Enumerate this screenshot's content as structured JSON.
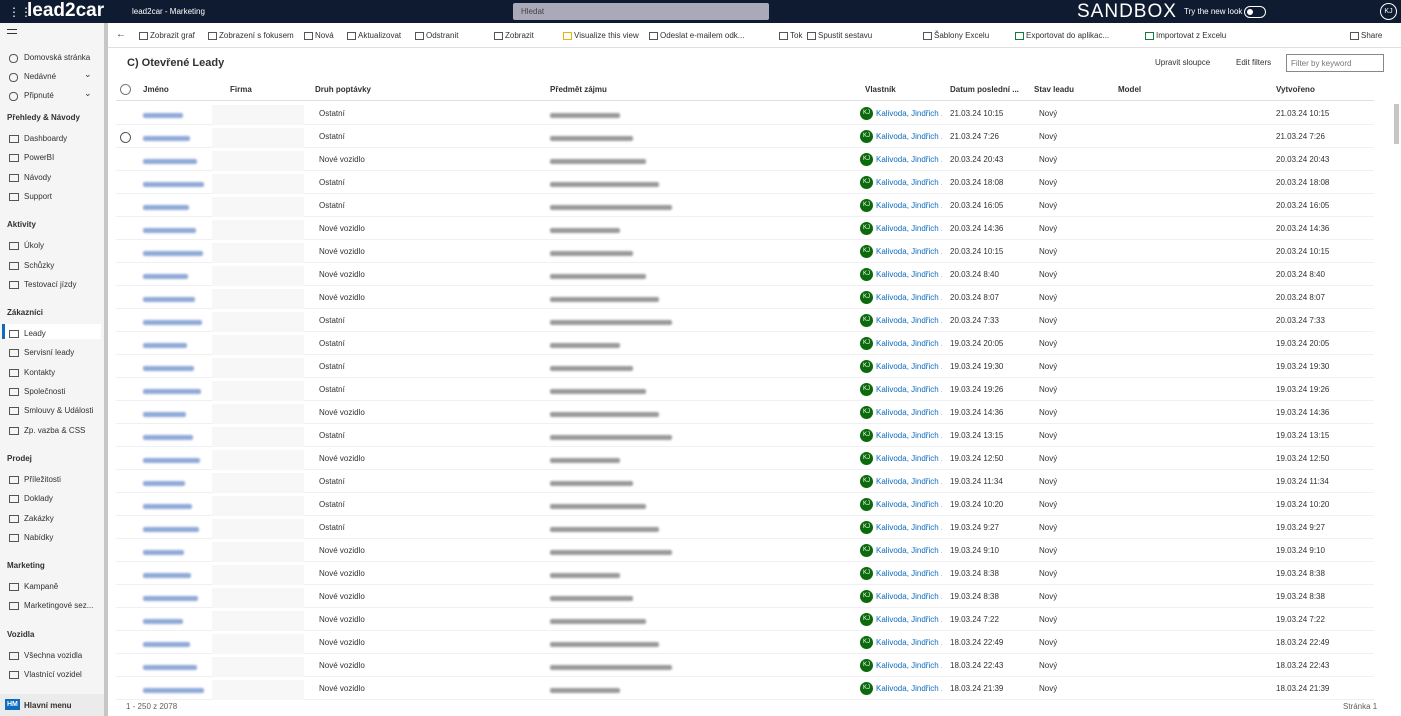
{
  "header": {
    "app_name": "lead2car",
    "area": "lead2car - Marketing",
    "search": "Hledat",
    "environment": "SANDBOX",
    "try_new_look": "Try the new look",
    "avatar": "KJ"
  },
  "sidebar": {
    "top": [
      "Domovská stránka",
      "Nedávné",
      "Připnuté"
    ],
    "sections": [
      {
        "title": "Přehledy & Návody",
        "items": [
          "Dashboardy",
          "PowerBI",
          "Návody",
          "Support"
        ]
      },
      {
        "title": "Aktivity",
        "items": [
          "Úkoly",
          "Schůzky",
          "Testovací jízdy"
        ]
      },
      {
        "title": "Zákazníci",
        "items": [
          "Leady",
          "Servisní leady",
          "Kontakty",
          "Společnosti",
          "Smlouvy & Události",
          "Zp. vazba & CSS"
        ]
      },
      {
        "title": "Prodej",
        "items": [
          "Příležitosti",
          "Doklady",
          "Zakázky",
          "Nabídky"
        ]
      },
      {
        "title": "Marketing",
        "items": [
          "Kampaně",
          "Marketingové sez..."
        ]
      },
      {
        "title": "Vozidla",
        "items": [
          "Všechna vozidla",
          "Vlastnící vozidel"
        ]
      }
    ],
    "bottom_badge": "HM",
    "bottom_label": "Hlavní menu"
  },
  "toolbar": [
    "Zobrazit graf",
    "Zobrazení s fokusem",
    "Nová",
    "Aktualizovat",
    "Odstranit",
    "Zobrazit",
    "Visualize this view",
    "Odeslat e-mailem odk...",
    "Tok",
    "Spustit sestavu",
    "Šablony Excelu",
    "Exportovat do aplikac...",
    "Importovat z Excelu",
    "Share"
  ],
  "view": {
    "title": "C) Otevřené Leady",
    "edit_columns": "Upravit sloupce",
    "edit_filters": "Edit filters",
    "filter_placeholder": "Filter by keyword"
  },
  "table": {
    "columns": [
      "Jméno",
      "Firma",
      "Druh poptávky",
      "Předmět zájmu",
      "Vlastník",
      "Datum poslední ...",
      "Stav leadu",
      "Model",
      "Vytvořeno"
    ],
    "rows": [
      [
        "Ostatní",
        "KJ",
        "Kalivoda, Jindřich ...",
        "21.03.24 10:15",
        "Nový",
        "21.03.24 10:15"
      ],
      [
        "Ostatní",
        "KJ",
        "Kalivoda, Jindřich ...",
        "21.03.24 7:26",
        "Nový",
        "21.03.24 7:26"
      ],
      [
        "Nové vozidlo",
        "KJ",
        "Kalivoda, Jindřich ...",
        "20.03.24 20:43",
        "Nový",
        "20.03.24 20:43"
      ],
      [
        "Ostatní",
        "KJ",
        "Kalivoda, Jindřich ...",
        "20.03.24 18:08",
        "Nový",
        "20.03.24 18:08"
      ],
      [
        "Ostatní",
        "KJ",
        "Kalivoda, Jindřich ...",
        "20.03.24 16:05",
        "Nový",
        "20.03.24 16:05"
      ],
      [
        "Nové vozidlo",
        "KJ",
        "Kalivoda, Jindřich ...",
        "20.03.24 14:36",
        "Nový",
        "20.03.24 14:36"
      ],
      [
        "Nové vozidlo",
        "KJ",
        "Kalivoda, Jindřich ...",
        "20.03.24 10:15",
        "Nový",
        "20.03.24 10:15"
      ],
      [
        "Nové vozidlo",
        "KJ",
        "Kalivoda, Jindřich ...",
        "20.03.24 8:40",
        "Nový",
        "20.03.24 8:40"
      ],
      [
        "Nové vozidlo",
        "KJ",
        "Kalivoda, Jindřich ...",
        "20.03.24 8:07",
        "Nový",
        "20.03.24 8:07"
      ],
      [
        "Ostatní",
        "KJ",
        "Kalivoda, Jindřich ...",
        "20.03.24 7:33",
        "Nový",
        "20.03.24 7:33"
      ],
      [
        "Ostatní",
        "KJ",
        "Kalivoda, Jindřich ...",
        "19.03.24 20:05",
        "Nový",
        "19.03.24 20:05"
      ],
      [
        "Ostatní",
        "KJ",
        "Kalivoda, Jindřich ...",
        "19.03.24 19:30",
        "Nový",
        "19.03.24 19:30"
      ],
      [
        "Ostatní",
        "KJ",
        "Kalivoda, Jindřich ...",
        "19.03.24 19:26",
        "Nový",
        "19.03.24 19:26"
      ],
      [
        "Nové vozidlo",
        "KJ",
        "Kalivoda, Jindřich ...",
        "19.03.24 14:36",
        "Nový",
        "19.03.24 14:36"
      ],
      [
        "Ostatní",
        "KJ",
        "Kalivoda, Jindřich ...",
        "19.03.24 13:15",
        "Nový",
        "19.03.24 13:15"
      ],
      [
        "Nové vozidlo",
        "KJ",
        "Kalivoda, Jindřich ...",
        "19.03.24 12:50",
        "Nový",
        "19.03.24 12:50"
      ],
      [
        "Ostatní",
        "KJ",
        "Kalivoda, Jindřich ...",
        "19.03.24 11:34",
        "Nový",
        "19.03.24 11:34"
      ],
      [
        "Ostatní",
        "KJ",
        "Kalivoda, Jindřich ...",
        "19.03.24 10:20",
        "Nový",
        "19.03.24 10:20"
      ],
      [
        "Ostatní",
        "KJ",
        "Kalivoda, Jindřich ...",
        "19.03.24 9:27",
        "Nový",
        "19.03.24 9:27"
      ],
      [
        "Nové vozidlo",
        "KJ",
        "Kalivoda, Jindřich ...",
        "19.03.24 9:10",
        "Nový",
        "19.03.24 9:10"
      ],
      [
        "Nové vozidlo",
        "KJ",
        "Kalivoda, Jindřich ...",
        "19.03.24 8:38",
        "Nový",
        "19.03.24 8:38"
      ],
      [
        "Nové vozidlo",
        "KJ",
        "Kalivoda, Jindřich ...",
        "19.03.24 8:38",
        "Nový",
        "19.03.24 8:38"
      ],
      [
        "Nové vozidlo",
        "KJ",
        "Kalivoda, Jindřich ...",
        "19.03.24 7:22",
        "Nový",
        "19.03.24 7:22"
      ],
      [
        "Nové vozidlo",
        "KJ",
        "Kalivoda, Jindřich ...",
        "18.03.24 22:49",
        "Nový",
        "18.03.24 22:49"
      ],
      [
        "Nové vozidlo",
        "KJ",
        "Kalivoda, Jindřich ...",
        "18.03.24 22:43",
        "Nový",
        "18.03.24 22:43"
      ],
      [
        "Nové vozidlo",
        "KJ",
        "Kalivoda, Jindřich ...",
        "18.03.24 21:39",
        "Nový",
        "18.03.24 21:39"
      ]
    ]
  },
  "footer": {
    "count": "1 - 250 z 2078",
    "page": "Stránka 1"
  }
}
